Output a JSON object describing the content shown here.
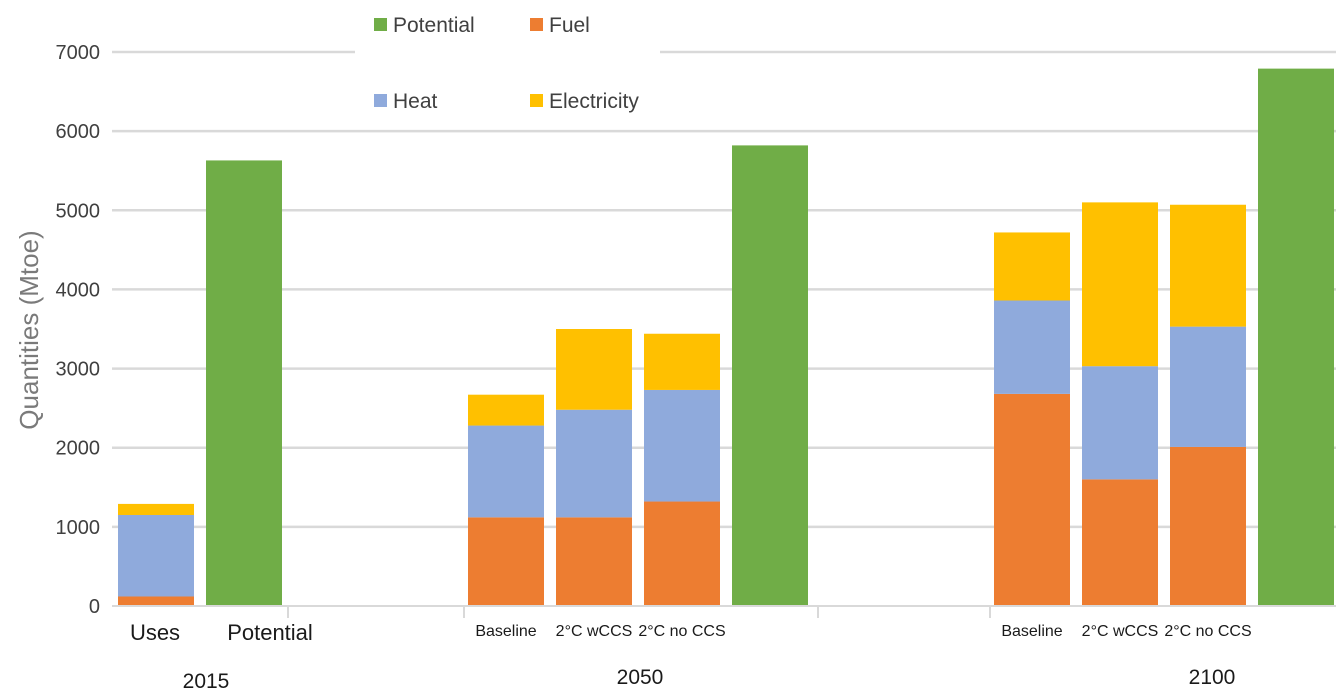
{
  "chart_data": {
    "type": "bar",
    "stacked": true,
    "ylabel": "Quantities (Mtoe)",
    "ylim": [
      0,
      7000
    ],
    "yticks": [
      0,
      1000,
      2000,
      3000,
      4000,
      5000,
      6000,
      7000
    ],
    "grid": true,
    "legend_position": "top",
    "series": [
      {
        "name": "Fuel",
        "color": "#ED7D31"
      },
      {
        "name": "Heat",
        "color": "#8FAADC"
      },
      {
        "name": "Electricity",
        "color": "#FFC000"
      },
      {
        "name": "Potential",
        "color": "#70AD47"
      }
    ],
    "legend_order": [
      "Potential",
      "Fuel",
      "Heat",
      "Electricity"
    ],
    "groups": [
      {
        "label": "2015",
        "bars": [
          {
            "label": "Uses",
            "values": {
              "Fuel": 120,
              "Heat": 1030,
              "Electricity": 140
            }
          },
          {
            "label": "Potential",
            "values": {
              "Potential": 5630
            }
          }
        ]
      },
      {
        "label": "2050",
        "bars": [
          {
            "label": "Baseline",
            "values": {
              "Fuel": 1120,
              "Heat": 1160,
              "Electricity": 390
            }
          },
          {
            "label": "2°C wCCS",
            "values": {
              "Fuel": 1120,
              "Heat": 1360,
              "Electricity": 1020
            }
          },
          {
            "label": "2°C no CCS",
            "values": {
              "Fuel": 1320,
              "Heat": 1410,
              "Electricity": 710
            }
          },
          {
            "label": "",
            "values": {
              "Potential": 5820
            }
          }
        ]
      },
      {
        "label": "2100",
        "bars": [
          {
            "label": "Baseline",
            "values": {
              "Fuel": 2680,
              "Heat": 1180,
              "Electricity": 860
            }
          },
          {
            "label": "2°C wCCS",
            "values": {
              "Fuel": 1600,
              "Heat": 1430,
              "Electricity": 2070
            }
          },
          {
            "label": "2°C no CCS",
            "values": {
              "Fuel": 2010,
              "Heat": 1520,
              "Electricity": 1540
            }
          },
          {
            "label": "",
            "values": {
              "Potential": 6790
            }
          }
        ]
      }
    ]
  }
}
